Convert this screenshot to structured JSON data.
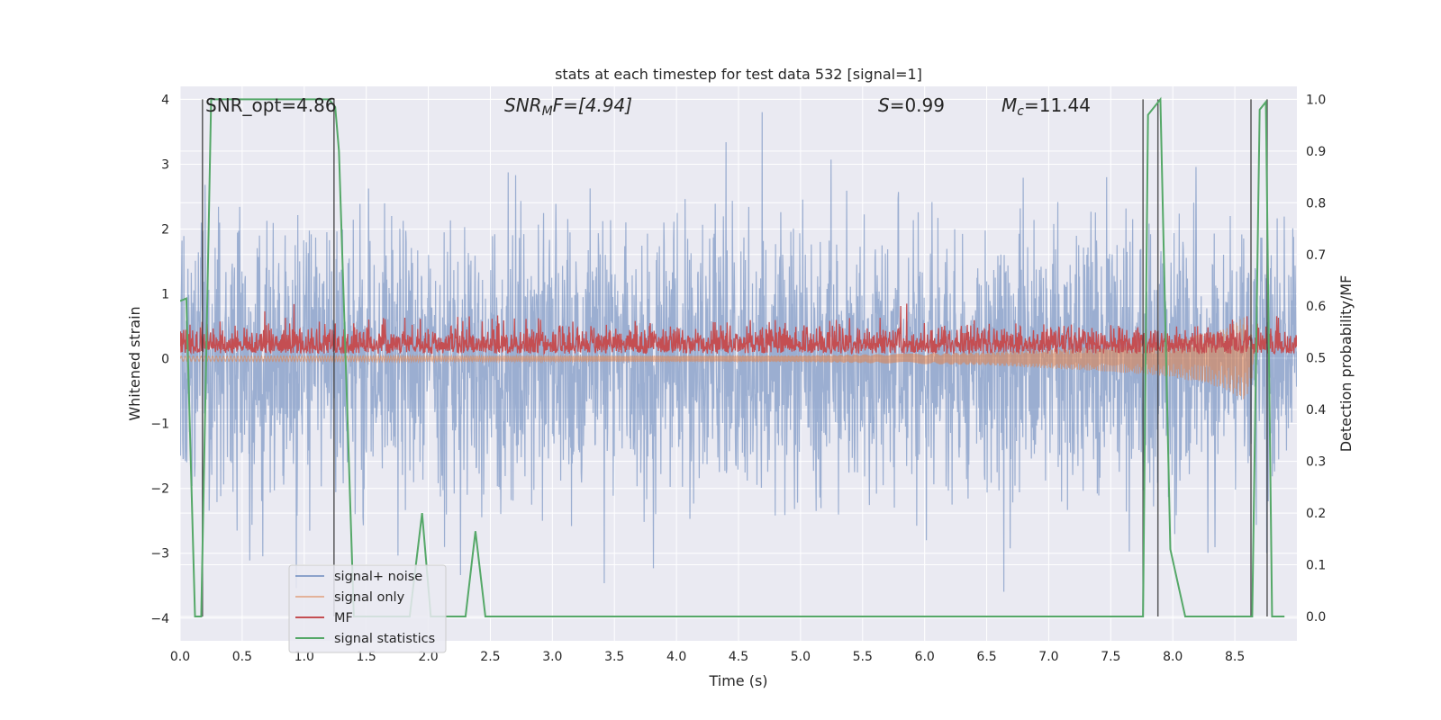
{
  "chart_data": {
    "type": "line",
    "title": "stats at each timestep for test data 532 [signal=1]",
    "xlabel": "Time (s)",
    "ylabel_left": "Whitened strain",
    "ylabel_right": "Detection probability/MF",
    "xlim": [
      0.0,
      9.0
    ],
    "ylim_left": [
      -4.35,
      4.2
    ],
    "ylim_right": [
      -0.047,
      1.025
    ],
    "x_ticks": [
      "0.0",
      "0.5",
      "1.0",
      "1.5",
      "2.0",
      "2.5",
      "3.0",
      "3.5",
      "4.0",
      "4.5",
      "5.0",
      "5.5",
      "6.0",
      "6.5",
      "7.0",
      "7.5",
      "8.0",
      "8.5"
    ],
    "y_ticks_left": [
      "−4",
      "−3",
      "−2",
      "−1",
      "0",
      "1",
      "2",
      "3",
      "4"
    ],
    "y_ticks_right": [
      "0.0",
      "0.1",
      "0.2",
      "0.3",
      "0.4",
      "0.5",
      "0.6",
      "0.7",
      "0.8",
      "0.9",
      "1.0"
    ],
    "grid": true,
    "legend_position": "lower-left",
    "annotations": {
      "snr_opt": "SNR_opt=4.86",
      "snr_mf_base": "SNR",
      "snr_mf_sub": "M",
      "snr_mf_rest": "F=[4.94]",
      "s_var": "S",
      "s_rest": "=0.99",
      "mc_var": "M",
      "mc_sub": "c",
      "mc_rest": "=11.44"
    },
    "series": [
      {
        "name": "signal+ noise",
        "color": "#4c72b0",
        "description_stats": {
          "mean": 0.0,
          "std": 1.0,
          "min": -4.0,
          "max": 4.0
        }
      },
      {
        "name": "signal only",
        "color": "#dd8452",
        "envelope_points": [
          [
            0.0,
            0.04
          ],
          [
            5.0,
            0.05
          ],
          [
            6.5,
            0.1
          ],
          [
            7.5,
            0.2
          ],
          [
            8.0,
            0.28
          ],
          [
            8.4,
            0.45
          ],
          [
            8.58,
            0.65
          ],
          [
            8.65,
            0.3
          ]
        ]
      },
      {
        "name": "MF",
        "color": "#c44e52",
        "description_stats": {
          "baseline": 0.1,
          "typical_peak": 0.45,
          "max": 0.85
        }
      },
      {
        "name": "signal statistics",
        "color": "#55a868",
        "x": [
          0.0,
          0.05,
          0.12,
          0.17,
          0.25,
          1.0,
          1.2,
          1.25,
          1.28,
          1.4,
          1.5,
          1.6,
          1.7,
          1.85,
          1.95,
          2.02,
          2.1,
          2.3,
          2.38,
          2.46,
          7.5,
          7.76,
          7.8,
          7.9,
          7.98,
          8.1,
          8.3,
          8.6,
          8.64,
          8.7,
          8.75,
          8.8,
          8.9
        ],
        "y": [
          0.61,
          0.615,
          0.0,
          0.0,
          1.0,
          1.0,
          1.0,
          0.985,
          0.9,
          0.0,
          0.0,
          0.0,
          0.0,
          0.0,
          0.2,
          0.0,
          0.0,
          0.0,
          0.165,
          0.0,
          0.0,
          0.0,
          0.97,
          1.0,
          0.13,
          0.0,
          0.0,
          0.0,
          0.0,
          0.98,
          0.995,
          0.0,
          0.0
        ]
      }
    ],
    "vertical_markers_x": [
      0.18,
      1.24,
      7.76,
      7.88,
      8.63,
      8.76
    ]
  }
}
